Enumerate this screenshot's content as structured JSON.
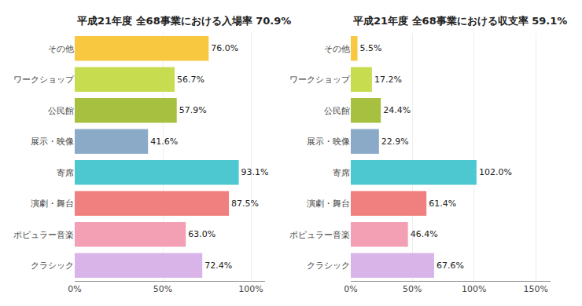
{
  "chart_data": [
    {
      "type": "bar",
      "orientation": "horizontal",
      "title": "平成21年度 全68事業における入場率 70.9%",
      "categories": [
        "クラシック",
        "ポピュラー音楽",
        "演劇・舞台",
        "寄席",
        "展示・映像",
        "公民館",
        "ワークショップ",
        "その他"
      ],
      "values": [
        72.4,
        63.0,
        87.5,
        93.1,
        41.6,
        57.9,
        56.7,
        76.0
      ],
      "value_labels": [
        "72.4%",
        "63.0%",
        "87.5%",
        "93.1%",
        "41.6%",
        "57.9%",
        "56.7%",
        "76.0%"
      ],
      "colors": [
        "#d8b4e8",
        "#f4a0b4",
        "#f08080",
        "#4ec8d0",
        "#8aaac8",
        "#a8c040",
        "#c8dc50",
        "#f8c840"
      ],
      "xlim": [
        0,
        108
      ],
      "xticks": [
        {
          "value": 0,
          "label": "0%"
        },
        {
          "value": 50,
          "label": "50%"
        },
        {
          "value": 100,
          "label": "100%"
        }
      ],
      "grid": true,
      "data_labels": true
    },
    {
      "type": "bar",
      "orientation": "horizontal",
      "title": "平成21年度 全68事業における収支率 59.1%",
      "categories": [
        "クラシック",
        "ポピュラー音楽",
        "演劇・舞台",
        "寄席",
        "展示・映像",
        "公民館",
        "ワークショップ",
        "その他"
      ],
      "values": [
        67.6,
        46.4,
        61.4,
        102.0,
        22.9,
        24.4,
        17.2,
        5.5
      ],
      "value_labels": [
        "67.6%",
        "46.4%",
        "61.4%",
        "102.0%",
        "22.9%",
        "24.4%",
        "17.2%",
        "5.5%"
      ],
      "colors": [
        "#d8b4e8",
        "#f4a0b4",
        "#f08080",
        "#4ec8d0",
        "#8aaac8",
        "#a8c040",
        "#c8dc50",
        "#f8c840"
      ],
      "xlim": [
        0,
        162
      ],
      "xticks": [
        {
          "value": 0,
          "label": "0%"
        },
        {
          "value": 50,
          "label": "50%"
        },
        {
          "value": 100,
          "label": "100%"
        },
        {
          "value": 150,
          "label": "150%"
        }
      ],
      "grid": true,
      "data_labels": true
    }
  ]
}
